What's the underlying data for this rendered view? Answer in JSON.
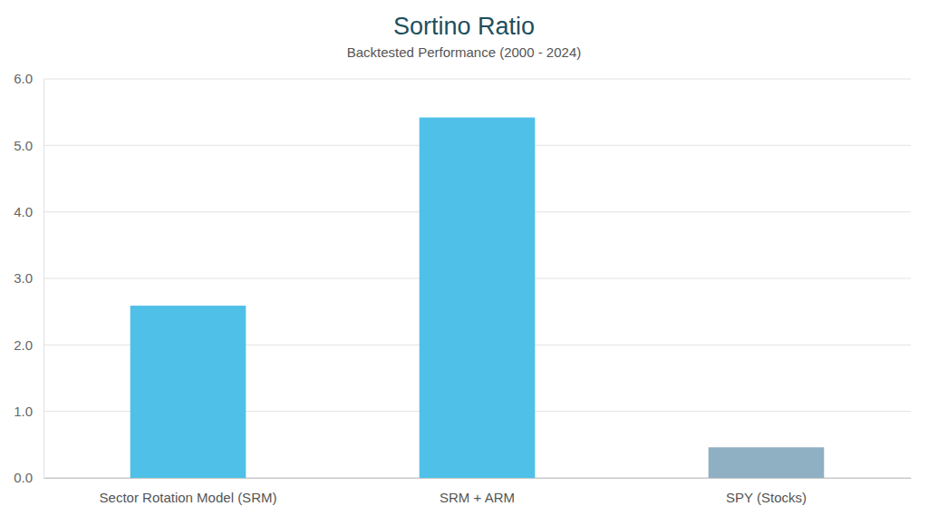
{
  "chart_data": {
    "type": "bar",
    "title": "Sortino Ratio",
    "subtitle": "Backtested Performance (2000 - 2024)",
    "categories": [
      "Sector Rotation Model (SRM)",
      "SRM + ARM",
      "SPY (Stocks)"
    ],
    "values": [
      2.59,
      5.42,
      0.46
    ],
    "colors": [
      "#4fc0e8",
      "#4fc0e8",
      "#8fafc3"
    ],
    "ylim": [
      0,
      6
    ],
    "yticks": [
      {
        "value": 0,
        "label": "0.0"
      },
      {
        "value": 1,
        "label": "1.0"
      },
      {
        "value": 2,
        "label": "2.0"
      },
      {
        "value": 3,
        "label": "3.0"
      },
      {
        "value": 4,
        "label": "4.0"
      },
      {
        "value": 5,
        "label": "5.0"
      },
      {
        "value": 6,
        "label": "6.0"
      }
    ],
    "grid": true
  }
}
